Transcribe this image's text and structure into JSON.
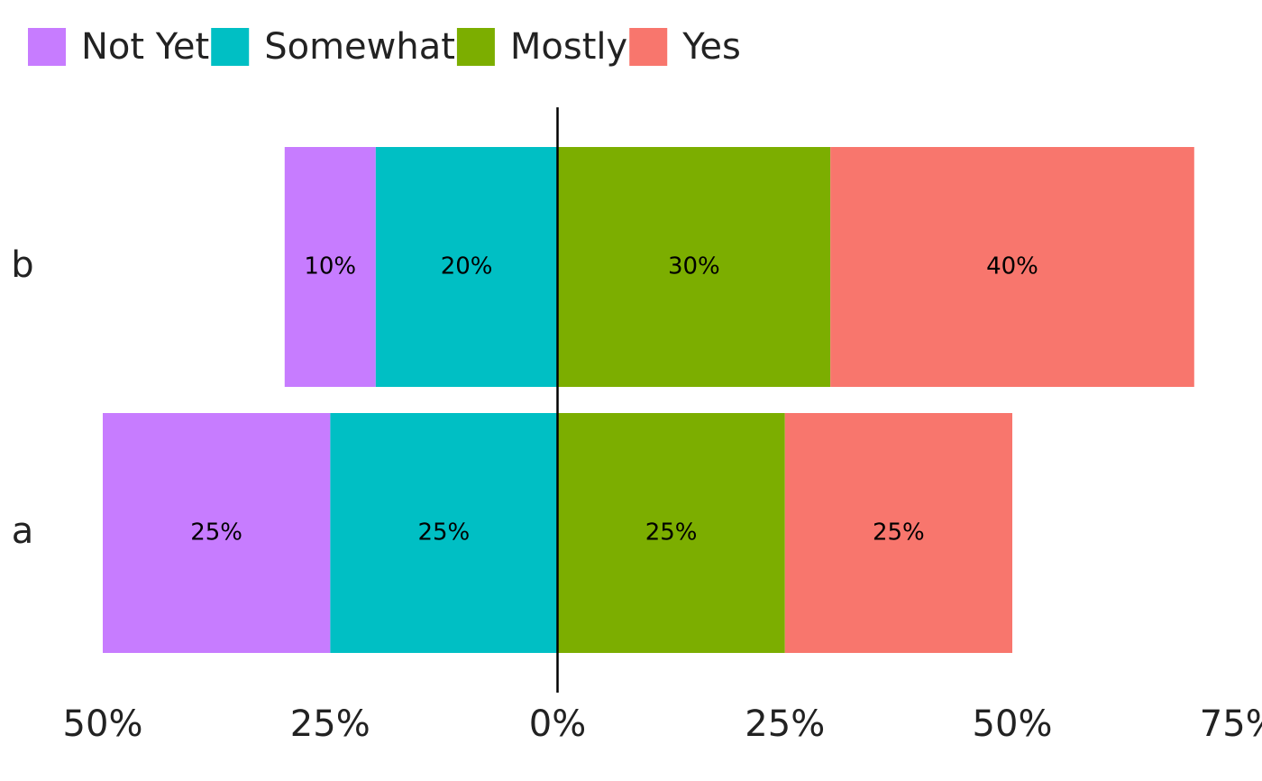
{
  "chart_data": {
    "type": "diverging-bar",
    "categories": [
      "b",
      "a"
    ],
    "series": [
      {
        "name": "Not Yet",
        "color": "#c77cff",
        "values": [
          -10,
          -25
        ],
        "value_labels": [
          "10%",
          "25%"
        ]
      },
      {
        "name": "Somewhat",
        "color": "#00bfc4",
        "values": [
          -20,
          -25
        ],
        "value_labels": [
          "20%",
          "25%"
        ]
      },
      {
        "name": "Mostly",
        "color": "#7cae00",
        "values": [
          30,
          25
        ],
        "value_labels": [
          "30%",
          "25%"
        ]
      },
      {
        "name": "Yes",
        "color": "#f8766d",
        "values": [
          40,
          25
        ],
        "value_labels": [
          "40%",
          "25%"
        ]
      }
    ],
    "xlim": [
      -50,
      75
    ],
    "xticks": [
      {
        "value": -50,
        "label": "50%"
      },
      {
        "value": -25,
        "label": "25%"
      },
      {
        "value": 0,
        "label": "0%"
      },
      {
        "value": 25,
        "label": "25%"
      },
      {
        "value": 50,
        "label": "50%"
      },
      {
        "value": 75,
        "label": "75%"
      }
    ],
    "legend": "top-left"
  }
}
